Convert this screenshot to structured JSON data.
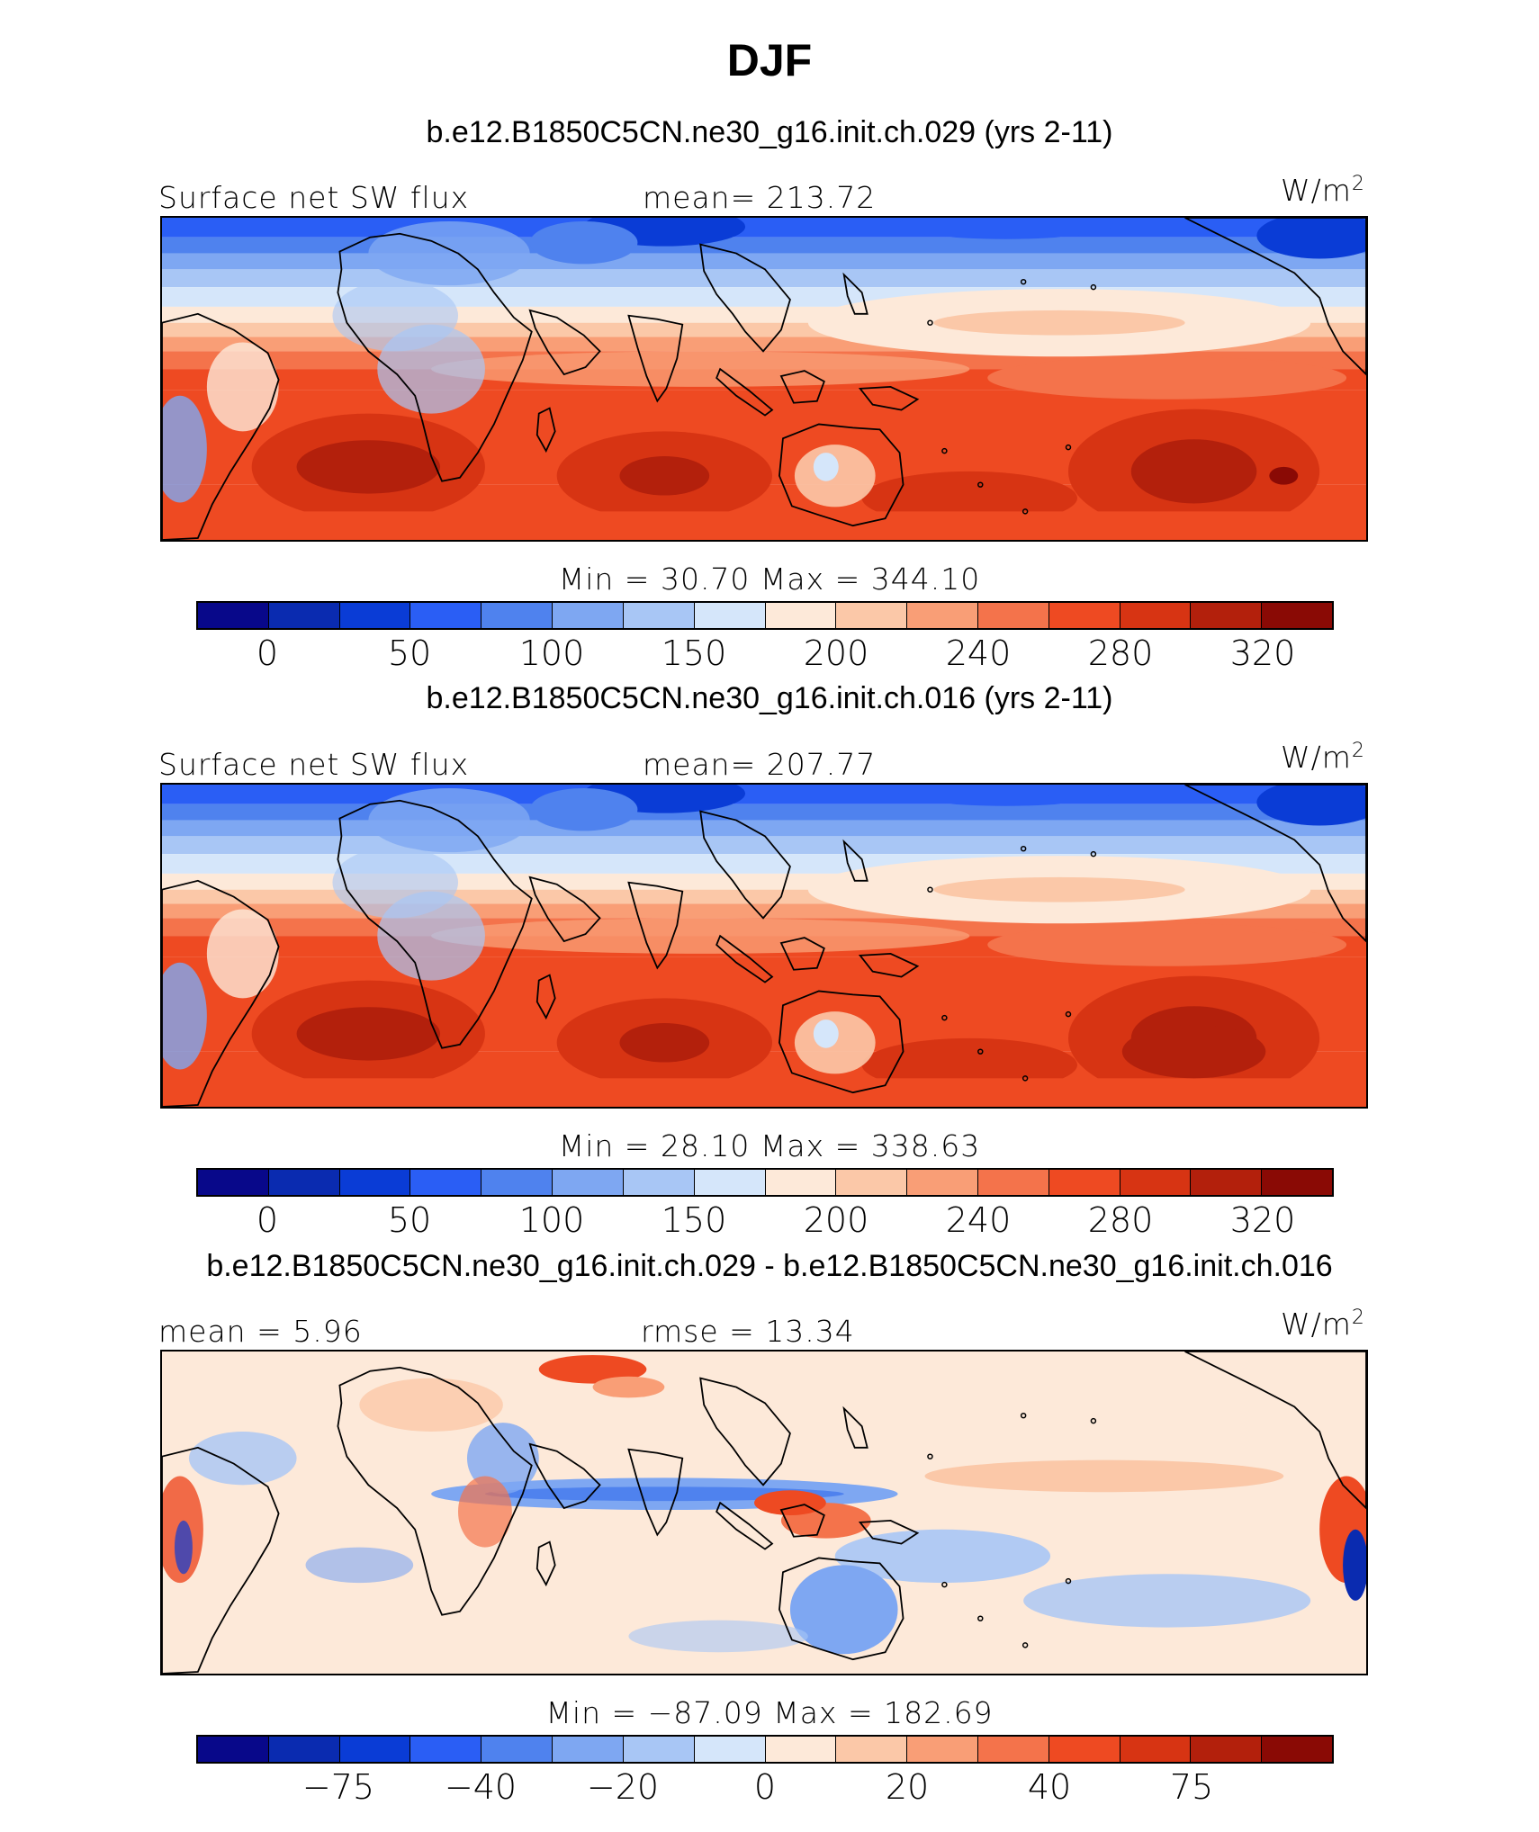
{
  "title": "DJF",
  "colorbar_colors": [
    "#08088a",
    "#0a2bb0",
    "#0a3cd6",
    "#2a5ef5",
    "#4f82ee",
    "#7ea7f2",
    "#a8c6f5",
    "#d5e6fa",
    "#fde9d9",
    "#fbc8a8",
    "#f99e76",
    "#f4734b",
    "#ee4a22",
    "#d73413",
    "#b3200c",
    "#8a0a05"
  ],
  "panels": [
    {
      "heading": "b.e12.B1850C5CN.ne30_g16.init.ch.029 (yrs 2-11)",
      "left_label": "Surface net SW flux",
      "center_label": "mean= 213.72",
      "units": "W/m",
      "units_sup": "2",
      "minmax": "Min  =   30.70  Max  =  344.10",
      "ticks": [
        "0",
        "50",
        "100",
        "150",
        "200",
        "240",
        "280",
        "320"
      ],
      "field": "abs"
    },
    {
      "heading": "b.e12.B1850C5CN.ne30_g16.init.ch.016 (yrs 2-11)",
      "left_label": "Surface net SW flux",
      "center_label": "mean= 207.77",
      "units": "W/m",
      "units_sup": "2",
      "minmax": "Min  =   28.10  Max  =  338.63",
      "ticks": [
        "0",
        "50",
        "100",
        "150",
        "200",
        "240",
        "280",
        "320"
      ],
      "field": "abs"
    },
    {
      "heading": "b.e12.B1850C5CN.ne30_g16.init.ch.029 - b.e12.B1850C5CN.ne30_g16.init.ch.016",
      "left_label": "mean  =    5.96",
      "center_label": "rmse  =    13.34",
      "units": "W/m",
      "units_sup": "2",
      "minmax": "Min  =  −87.09  Max  =  182.69",
      "ticks": [
        "−75",
        "−40",
        "−20",
        "0",
        "20",
        "40",
        "75"
      ],
      "field": "diff"
    }
  ]
}
